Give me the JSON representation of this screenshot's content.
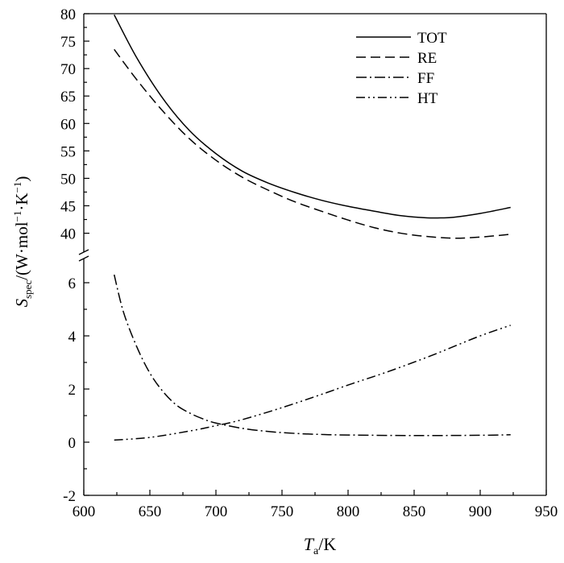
{
  "chart_data": {
    "type": "line",
    "xlabel": {
      "main": "T",
      "sub": "a",
      "unit": "/K"
    },
    "ylabel": {
      "main": "S",
      "sub": "spec",
      "unit": "/(W·mol",
      "sup1": "−1",
      "dot": "·K",
      "sup2": "−1",
      "close": ")"
    },
    "xlim": [
      600,
      950
    ],
    "xticks": [
      600,
      650,
      700,
      750,
      800,
      850,
      900,
      950
    ],
    "y_upper": {
      "ylim": [
        37,
        80
      ],
      "ticks": [
        40,
        45,
        50,
        55,
        60,
        65,
        70,
        75,
        80
      ]
    },
    "y_lower": {
      "ylim": [
        -2,
        7
      ],
      "ticks": [
        -2,
        0,
        2,
        4,
        6
      ]
    },
    "axis_break": true,
    "grid": false,
    "legend_position": "top-right",
    "series": [
      {
        "name": "TOT",
        "style": "solid",
        "panel": "upper",
        "x": [
          623,
          640,
          660,
          680,
          700,
          720,
          740,
          760,
          780,
          800,
          820,
          840,
          860,
          870,
          880,
          900,
          923
        ],
        "y": [
          79.8,
          72.0,
          64.5,
          58.7,
          54.5,
          51.3,
          49.1,
          47.4,
          46.0,
          44.9,
          44.0,
          43.2,
          42.8,
          42.8,
          42.9,
          43.6,
          44.7
        ]
      },
      {
        "name": "RE",
        "style": "dashed",
        "panel": "upper",
        "x": [
          623,
          640,
          660,
          680,
          700,
          720,
          740,
          760,
          780,
          800,
          820,
          840,
          860,
          880,
          900,
          923
        ],
        "y": [
          73.5,
          68.0,
          62.2,
          57.2,
          53.3,
          50.2,
          47.8,
          45.7,
          44.0,
          42.4,
          41.0,
          40.0,
          39.4,
          39.1,
          39.3,
          39.8
        ]
      },
      {
        "name": "FF",
        "style": "dashdot",
        "panel": "lower",
        "x": [
          623,
          630,
          640,
          650,
          660,
          670,
          680,
          690,
          700,
          720,
          740,
          760,
          780,
          800,
          850,
          900,
          923
        ],
        "y": [
          6.3,
          4.9,
          3.6,
          2.6,
          1.9,
          1.4,
          1.1,
          0.88,
          0.72,
          0.52,
          0.4,
          0.33,
          0.29,
          0.27,
          0.25,
          0.26,
          0.28
        ]
      },
      {
        "name": "HT",
        "style": "dashdotdot",
        "panel": "lower",
        "x": [
          623,
          650,
          680,
          700,
          720,
          750,
          780,
          800,
          830,
          860,
          880,
          900,
          923
        ],
        "y": [
          0.08,
          0.18,
          0.42,
          0.62,
          0.85,
          1.3,
          1.8,
          2.15,
          2.65,
          3.2,
          3.6,
          4.0,
          4.4
        ]
      }
    ]
  }
}
